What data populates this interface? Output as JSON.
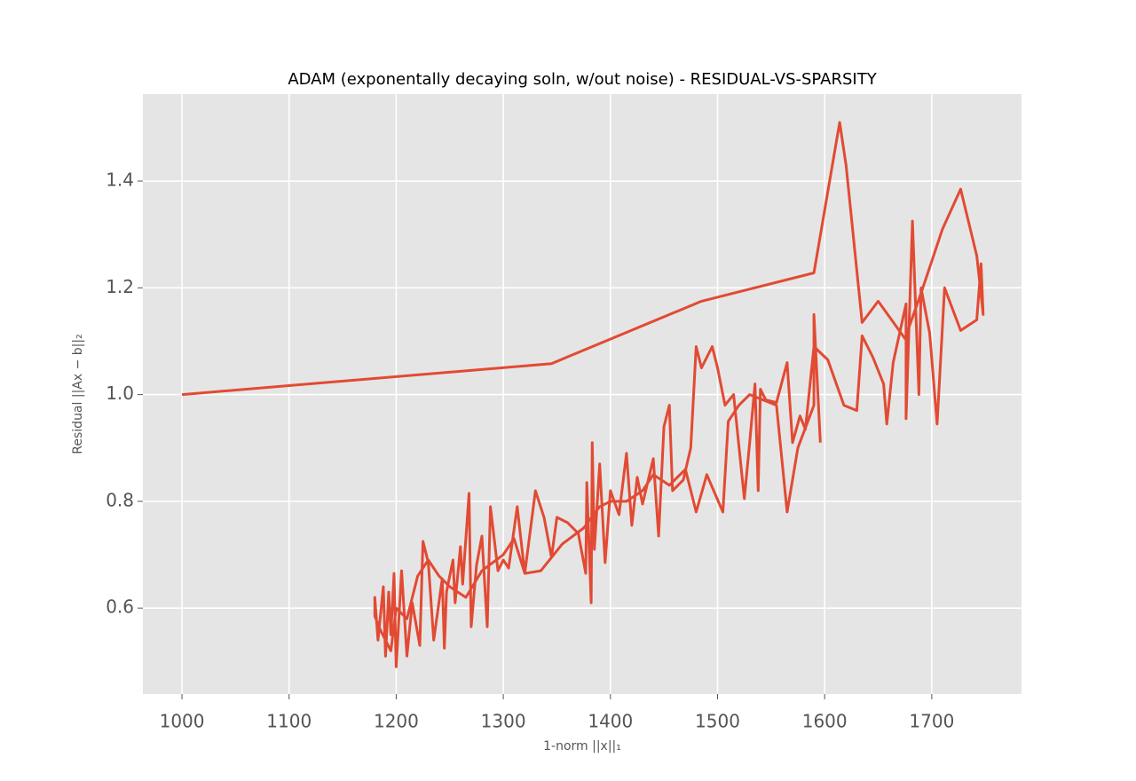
{
  "chart_data": {
    "type": "line",
    "title": "ADAM (exponentally decaying soln, w/out noise) - RESIDUAL-VS-SPARSITY",
    "xlabel": "1-norm ||x||₁",
    "ylabel": "Residual ||Ax − b||₂",
    "color": "#e24a33",
    "grid": true,
    "x": [
      1000,
      1345,
      1485,
      1590,
      1614,
      1620,
      1635,
      1650,
      1675,
      1690,
      1700,
      1710,
      1727,
      1742,
      1748,
      1746,
      1742,
      1727,
      1712,
      1705,
      1698,
      1690,
      1688,
      1682,
      1676,
      1676,
      1664,
      1658,
      1655,
      1645,
      1635,
      1630,
      1618,
      1603,
      1590,
      1582,
      1577,
      1570,
      1565,
      1555,
      1545,
      1540,
      1538,
      1535,
      1530,
      1525,
      1515,
      1507,
      1500,
      1495,
      1485,
      1480,
      1475,
      1468,
      1458,
      1455,
      1450,
      1445,
      1440,
      1430,
      1425,
      1420,
      1415,
      1408,
      1400,
      1395,
      1390,
      1385,
      1383,
      1382,
      1378,
      1377,
      1370,
      1360,
      1350,
      1345,
      1338,
      1330,
      1320,
      1313,
      1305,
      1300,
      1295,
      1288,
      1285,
      1280,
      1275,
      1270,
      1268,
      1262,
      1260,
      1255,
      1253,
      1247,
      1245,
      1243,
      1235,
      1230,
      1225,
      1222,
      1215,
      1210,
      1205,
      1200,
      1198,
      1195,
      1193,
      1190,
      1188,
      1183,
      1180,
      1180,
      1185,
      1195,
      1200,
      1210,
      1220,
      1230,
      1240,
      1250,
      1265,
      1280,
      1300,
      1310,
      1320,
      1335,
      1355,
      1375,
      1390,
      1400,
      1415,
      1430,
      1440,
      1455,
      1470,
      1480,
      1490,
      1505,
      1510,
      1520,
      1530,
      1555,
      1565,
      1575,
      1590,
      1590,
      1596
    ],
    "values": [
      1.0,
      1.058,
      1.175,
      1.228,
      1.51,
      1.43,
      1.135,
      1.175,
      1.105,
      1.19,
      1.25,
      1.31,
      1.385,
      1.26,
      1.15,
      1.245,
      1.14,
      1.12,
      1.2,
      0.945,
      1.115,
      1.2,
      1.0,
      1.325,
      0.955,
      1.17,
      1.06,
      0.945,
      1.02,
      1.07,
      1.11,
      0.97,
      0.98,
      1.065,
      1.09,
      0.935,
      0.96,
      0.91,
      1.06,
      0.985,
      0.99,
      1.01,
      0.82,
      1.02,
      0.91,
      0.805,
      1.0,
      0.98,
      1.05,
      1.09,
      1.05,
      1.09,
      0.9,
      0.84,
      0.82,
      0.98,
      0.94,
      0.735,
      0.88,
      0.795,
      0.845,
      0.755,
      0.89,
      0.775,
      0.82,
      0.685,
      0.87,
      0.71,
      0.91,
      0.61,
      0.835,
      0.665,
      0.74,
      0.76,
      0.77,
      0.695,
      0.77,
      0.82,
      0.665,
      0.79,
      0.675,
      0.69,
      0.67,
      0.79,
      0.565,
      0.735,
      0.68,
      0.565,
      0.815,
      0.645,
      0.715,
      0.61,
      0.69,
      0.63,
      0.525,
      0.655,
      0.54,
      0.685,
      0.725,
      0.53,
      0.61,
      0.51,
      0.67,
      0.49,
      0.665,
      0.55,
      0.63,
      0.51,
      0.64,
      0.54,
      0.62,
      0.585,
      0.56,
      0.52,
      0.6,
      0.58,
      0.66,
      0.69,
      0.66,
      0.64,
      0.62,
      0.67,
      0.7,
      0.73,
      0.665,
      0.67,
      0.72,
      0.75,
      0.79,
      0.8,
      0.8,
      0.82,
      0.85,
      0.83,
      0.86,
      0.78,
      0.85,
      0.78,
      0.95,
      0.98,
      1.0,
      0.98,
      0.78,
      0.9,
      0.98,
      1.15,
      0.91
    ],
    "xlim": [
      963.5,
      1783.8
    ],
    "xticks": [
      1000,
      1100,
      1200,
      1300,
      1400,
      1500,
      1600,
      1700
    ],
    "ylim": [
      0.439,
      1.563
    ],
    "yticks": [
      0.6,
      0.8,
      {
        "value": 1.0,
        "label": "1.0"
      },
      1.2,
      1.4
    ]
  }
}
